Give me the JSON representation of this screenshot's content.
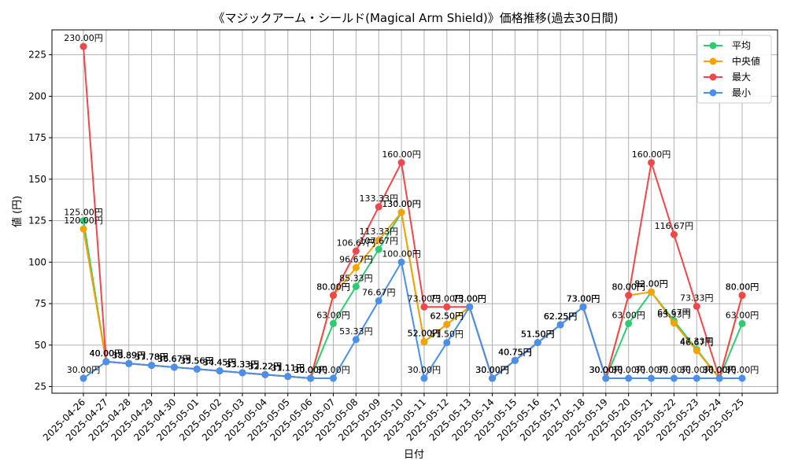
{
  "chart_data": {
    "type": "line",
    "title": "《マジックアーム・シールド(Magical Arm Shield)》価格推移(過去30日間)",
    "xlabel": "日付",
    "ylabel": "値 (円)",
    "ylim": [
      21,
      240
    ],
    "yticks": [
      25,
      50,
      75,
      100,
      125,
      150,
      175,
      200,
      225
    ],
    "grid": true,
    "legend_position": "top-right",
    "value_suffix": "円",
    "categories": [
      "2025-04-26",
      "2025-04-27",
      "2025-04-28",
      "2025-04-29",
      "2025-04-30",
      "2025-05-01",
      "2025-05-02",
      "2025-05-03",
      "2025-05-04",
      "2025-05-05",
      "2025-05-06",
      "2025-05-07",
      "2025-05-08",
      "2025-05-09",
      "2025-05-10",
      "2025-05-11",
      "2025-05-12",
      "2025-05-13",
      "2025-05-14",
      "2025-05-15",
      "2025-05-16",
      "2025-05-17",
      "2025-05-18",
      "2025-05-19",
      "2025-05-20",
      "2025-05-21",
      "2025-05-22",
      "2025-05-23",
      "2025-05-24",
      "2025-05-25"
    ],
    "series": [
      {
        "name": "平均",
        "color": "#2ecc71",
        "values": [
          125.0,
          40.0,
          38.89,
          37.78,
          36.67,
          35.56,
          34.45,
          33.33,
          32.22,
          31.11,
          30.0,
          63.0,
          85.33,
          107.67,
          130.0,
          52.0,
          62.5,
          73.0,
          30.0,
          40.75,
          51.5,
          62.25,
          73.0,
          30.0,
          63.0,
          82.0,
          64.67,
          47.33,
          30.0,
          63.0
        ]
      },
      {
        "name": "中央値",
        "color": "#f4a300",
        "values": [
          120.0,
          40.0,
          38.89,
          37.78,
          36.67,
          35.56,
          34.45,
          33.33,
          32.22,
          31.11,
          30.0,
          80.0,
          96.67,
          113.33,
          130.0,
          52.0,
          62.5,
          73.0,
          30.0,
          40.75,
          51.5,
          62.25,
          73.0,
          30.0,
          80.0,
          82.0,
          63.33,
          46.67,
          30.0,
          80.0
        ]
      },
      {
        "name": "最大",
        "color": "#f0474a",
        "values": [
          230.0,
          40.0,
          38.89,
          37.78,
          36.67,
          35.56,
          34.45,
          33.33,
          32.22,
          31.11,
          30.0,
          80.0,
          106.67,
          133.33,
          160.0,
          73.0,
          73.0,
          73.0,
          30.0,
          40.75,
          51.5,
          62.25,
          73.0,
          30.0,
          80.0,
          160.0,
          116.67,
          73.33,
          30.0,
          80.0
        ]
      },
      {
        "name": "最小",
        "color": "#4a90e8",
        "values": [
          30.0,
          40.0,
          38.89,
          37.78,
          36.67,
          35.56,
          34.45,
          33.33,
          32.22,
          31.11,
          30.0,
          30.0,
          53.33,
          76.67,
          100.0,
          30.0,
          51.5,
          73.0,
          30.0,
          40.75,
          51.5,
          62.25,
          73.0,
          30.0,
          30.0,
          30.0,
          30.0,
          30.0,
          30.0,
          30.0
        ]
      }
    ]
  }
}
